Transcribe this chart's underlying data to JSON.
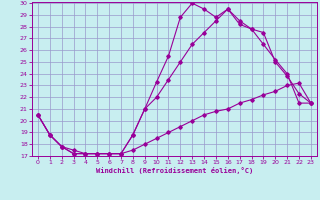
{
  "xlabel": "Windchill (Refroidissement éolien,°C)",
  "bg_color": "#c8eef0",
  "line_color": "#990099",
  "grid_color": "#9999cc",
  "xlim": [
    -0.5,
    23.5
  ],
  "ylim": [
    17,
    30
  ],
  "yticks": [
    17,
    18,
    19,
    20,
    21,
    22,
    23,
    24,
    25,
    26,
    27,
    28,
    29,
    30
  ],
  "xticks": [
    0,
    1,
    2,
    3,
    4,
    5,
    6,
    7,
    8,
    9,
    10,
    11,
    12,
    13,
    14,
    15,
    16,
    17,
    18,
    19,
    20,
    21,
    22,
    23
  ],
  "line1_x": [
    0,
    1,
    2,
    3,
    4,
    5,
    6,
    7,
    8,
    9,
    10,
    11,
    12,
    13,
    14,
    15,
    16,
    17,
    18,
    19,
    20,
    21,
    22,
    23
  ],
  "line1_y": [
    20.5,
    18.8,
    17.8,
    17.2,
    17.2,
    17.2,
    17.2,
    17.2,
    18.8,
    21.0,
    23.3,
    25.5,
    28.8,
    30.0,
    29.5,
    28.8,
    29.5,
    28.2,
    27.8,
    27.5,
    25.0,
    23.8,
    22.3,
    21.5
  ],
  "line2_x": [
    0,
    1,
    2,
    3,
    4,
    5,
    6,
    7,
    8,
    9,
    10,
    11,
    12,
    13,
    14,
    15,
    16,
    17,
    18,
    19,
    20,
    21,
    22,
    23
  ],
  "line2_y": [
    20.5,
    18.8,
    17.8,
    17.2,
    17.2,
    17.2,
    17.2,
    17.2,
    18.8,
    21.0,
    22.0,
    23.5,
    25.0,
    26.5,
    27.5,
    28.5,
    29.5,
    28.5,
    27.8,
    26.5,
    25.2,
    24.0,
    21.5,
    21.5
  ],
  "line3_x": [
    0,
    1,
    2,
    3,
    4,
    5,
    6,
    7,
    8,
    9,
    10,
    11,
    12,
    13,
    14,
    15,
    16,
    17,
    18,
    19,
    20,
    21,
    22,
    23
  ],
  "line3_y": [
    20.5,
    18.8,
    17.8,
    17.5,
    17.2,
    17.2,
    17.2,
    17.2,
    17.5,
    18.0,
    18.5,
    19.0,
    19.5,
    20.0,
    20.5,
    20.8,
    21.0,
    21.5,
    21.8,
    22.2,
    22.5,
    23.0,
    23.2,
    21.5
  ]
}
